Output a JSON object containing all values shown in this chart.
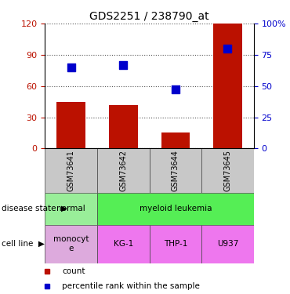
{
  "title": "GDS2251 / 238790_at",
  "samples": [
    "GSM73641",
    "GSM73642",
    "GSM73644",
    "GSM73645"
  ],
  "bar_values": [
    45,
    42,
    15,
    120
  ],
  "percentile_values": [
    65,
    67,
    47,
    80
  ],
  "left_ylim": [
    0,
    120
  ],
  "left_yticks": [
    0,
    30,
    60,
    90,
    120
  ],
  "right_ylim": [
    0,
    100
  ],
  "right_yticks": [
    0,
    25,
    50,
    75,
    100
  ],
  "right_yticklabels": [
    "0",
    "25",
    "50",
    "75",
    "100%"
  ],
  "bar_color": "#bb1100",
  "percentile_color": "#0000cc",
  "disease_state_colors": [
    "#99ee99",
    "#55ee55"
  ],
  "cell_line_colors": [
    "#ddaadd",
    "#ee77ee",
    "#ee77ee",
    "#ee77ee"
  ],
  "grid_color": "#555555",
  "background_color": "#ffffff",
  "bar_width": 0.55,
  "marker_size": 7,
  "label_fontsize": 7.5,
  "tick_fontsize": 8
}
